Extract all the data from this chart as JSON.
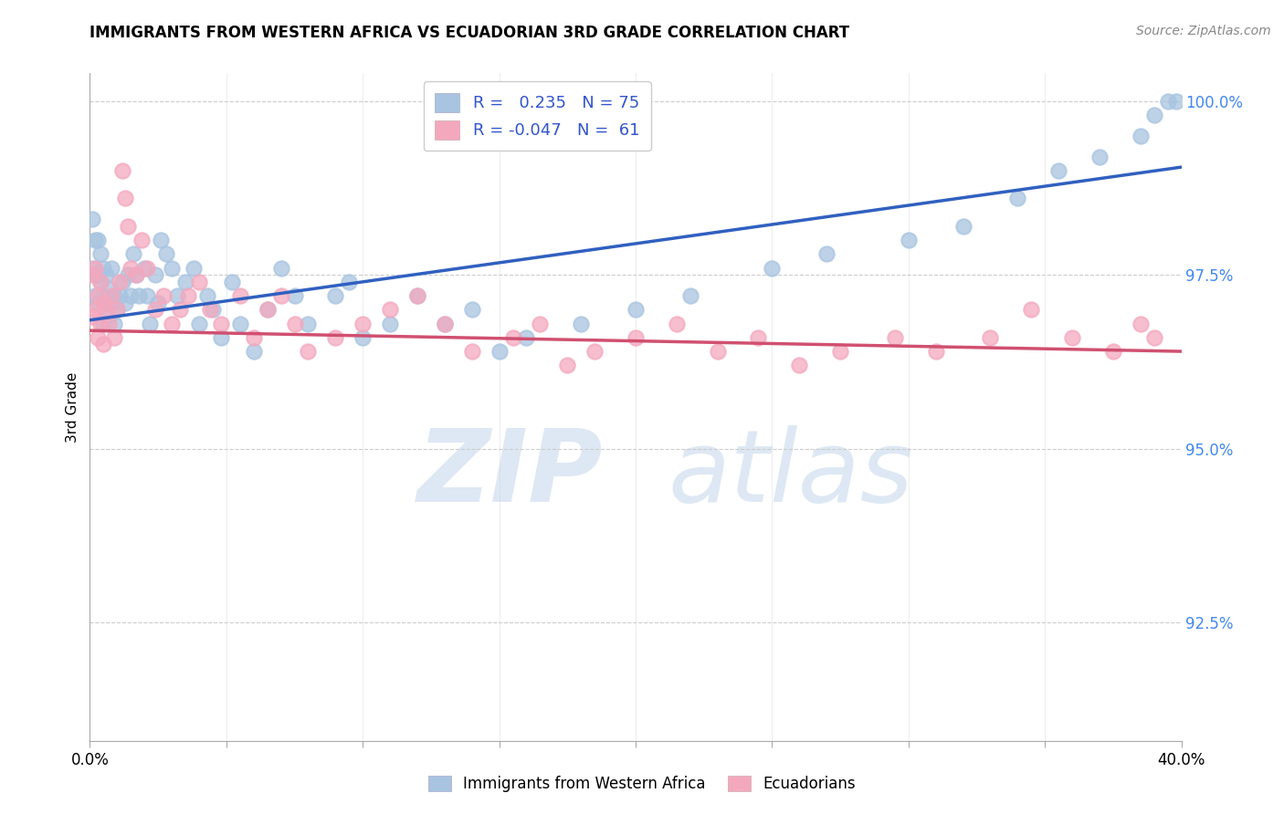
{
  "title": "IMMIGRANTS FROM WESTERN AFRICA VS ECUADORIAN 3RD GRADE CORRELATION CHART",
  "source": "Source: ZipAtlas.com",
  "ylabel": "3rd Grade",
  "ytick_labels": [
    "92.5%",
    "95.0%",
    "97.5%",
    "100.0%"
  ],
  "ytick_values": [
    0.925,
    0.95,
    0.975,
    1.0
  ],
  "xlim": [
    0.0,
    0.4
  ],
  "ylim": [
    0.908,
    1.004
  ],
  "blue_R": 0.235,
  "blue_N": 75,
  "pink_R": -0.047,
  "pink_N": 61,
  "blue_color": "#a8c4e0",
  "pink_color": "#f4a8be",
  "blue_line_color": "#3060c0",
  "pink_line_color": "#d05070",
  "legend_label_blue": "Immigrants from Western Africa",
  "legend_label_pink": "Ecuadorians",
  "blue_line_x": [
    0.0,
    0.4
  ],
  "blue_line_y": [
    0.9685,
    0.9905
  ],
  "pink_line_x": [
    0.0,
    0.4
  ],
  "pink_line_y": [
    0.967,
    0.964
  ],
  "blue_scatter_x": [
    0.001,
    0.001,
    0.002,
    0.002,
    0.002,
    0.003,
    0.003,
    0.003,
    0.004,
    0.004,
    0.005,
    0.005,
    0.005,
    0.006,
    0.006,
    0.007,
    0.007,
    0.008,
    0.008,
    0.009,
    0.009,
    0.01,
    0.011,
    0.012,
    0.013,
    0.014,
    0.015,
    0.016,
    0.017,
    0.018,
    0.02,
    0.021,
    0.022,
    0.024,
    0.025,
    0.026,
    0.028,
    0.03,
    0.032,
    0.035,
    0.038,
    0.04,
    0.043,
    0.045,
    0.048,
    0.052,
    0.055,
    0.06,
    0.065,
    0.07,
    0.075,
    0.08,
    0.09,
    0.095,
    0.1,
    0.11,
    0.12,
    0.13,
    0.14,
    0.15,
    0.16,
    0.18,
    0.2,
    0.22,
    0.25,
    0.27,
    0.3,
    0.32,
    0.34,
    0.355,
    0.37,
    0.385,
    0.39,
    0.395,
    0.398
  ],
  "blue_scatter_y": [
    0.983,
    0.976,
    0.98,
    0.975,
    0.972,
    0.98,
    0.975,
    0.971,
    0.978,
    0.974,
    0.976,
    0.972,
    0.968,
    0.975,
    0.971,
    0.973,
    0.969,
    0.976,
    0.971,
    0.972,
    0.968,
    0.97,
    0.972,
    0.974,
    0.971,
    0.975,
    0.972,
    0.978,
    0.975,
    0.972,
    0.976,
    0.972,
    0.968,
    0.975,
    0.971,
    0.98,
    0.978,
    0.976,
    0.972,
    0.974,
    0.976,
    0.968,
    0.972,
    0.97,
    0.966,
    0.974,
    0.968,
    0.964,
    0.97,
    0.976,
    0.972,
    0.968,
    0.972,
    0.974,
    0.966,
    0.968,
    0.972,
    0.968,
    0.97,
    0.964,
    0.966,
    0.968,
    0.97,
    0.972,
    0.976,
    0.978,
    0.98,
    0.982,
    0.986,
    0.99,
    0.992,
    0.995,
    0.998,
    1.0,
    1.0
  ],
  "pink_scatter_x": [
    0.001,
    0.001,
    0.002,
    0.002,
    0.003,
    0.003,
    0.004,
    0.004,
    0.005,
    0.005,
    0.006,
    0.007,
    0.008,
    0.009,
    0.01,
    0.011,
    0.012,
    0.013,
    0.014,
    0.015,
    0.017,
    0.019,
    0.021,
    0.024,
    0.027,
    0.03,
    0.033,
    0.036,
    0.04,
    0.044,
    0.048,
    0.055,
    0.06,
    0.065,
    0.07,
    0.075,
    0.08,
    0.09,
    0.1,
    0.11,
    0.12,
    0.13,
    0.14,
    0.155,
    0.165,
    0.175,
    0.185,
    0.2,
    0.215,
    0.23,
    0.245,
    0.26,
    0.275,
    0.295,
    0.31,
    0.33,
    0.345,
    0.36,
    0.375,
    0.385,
    0.39
  ],
  "pink_scatter_y": [
    0.975,
    0.969,
    0.976,
    0.97,
    0.972,
    0.966,
    0.974,
    0.968,
    0.971,
    0.965,
    0.97,
    0.968,
    0.972,
    0.966,
    0.97,
    0.974,
    0.99,
    0.986,
    0.982,
    0.976,
    0.975,
    0.98,
    0.976,
    0.97,
    0.972,
    0.968,
    0.97,
    0.972,
    0.974,
    0.97,
    0.968,
    0.972,
    0.966,
    0.97,
    0.972,
    0.968,
    0.964,
    0.966,
    0.968,
    0.97,
    0.972,
    0.968,
    0.964,
    0.966,
    0.968,
    0.962,
    0.964,
    0.966,
    0.968,
    0.964,
    0.966,
    0.962,
    0.964,
    0.966,
    0.964,
    0.966,
    0.97,
    0.966,
    0.964,
    0.968,
    0.966
  ]
}
